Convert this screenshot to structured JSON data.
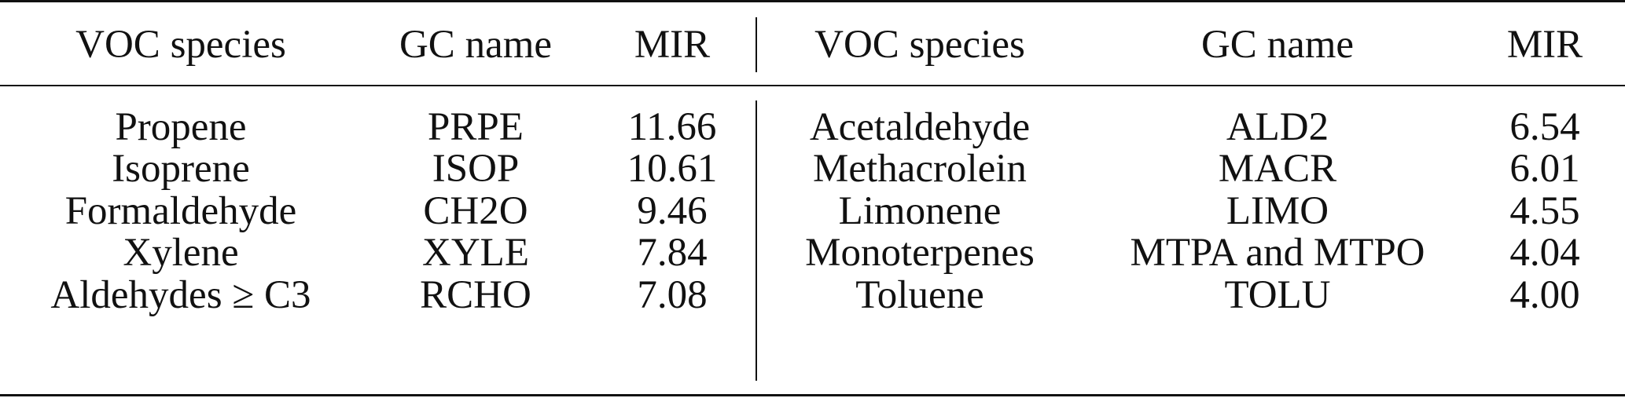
{
  "table": {
    "header": [
      "VOC species",
      "GC name",
      "MIR",
      "VOC species",
      "GC name",
      "MIR"
    ],
    "rows": [
      [
        "Propene",
        "PRPE",
        "11.66",
        "Acetaldehyde",
        "ALD2",
        "6.54"
      ],
      [
        "Isoprene",
        "ISOP",
        "10.61",
        "Methacrolein",
        "MACR",
        "6.01"
      ],
      [
        "Formaldehyde",
        "CH2O",
        "9.46",
        "Limonene",
        "LIMO",
        "4.55"
      ],
      [
        "Xylene",
        "XYLE",
        "7.84",
        "Monoterpenes",
        "MTPA and MTPO",
        "4.04"
      ],
      [
        "Aldehydes ≥ C3",
        "RCHO",
        "7.08",
        "Toluene",
        "TOLU",
        "4.00"
      ]
    ]
  }
}
